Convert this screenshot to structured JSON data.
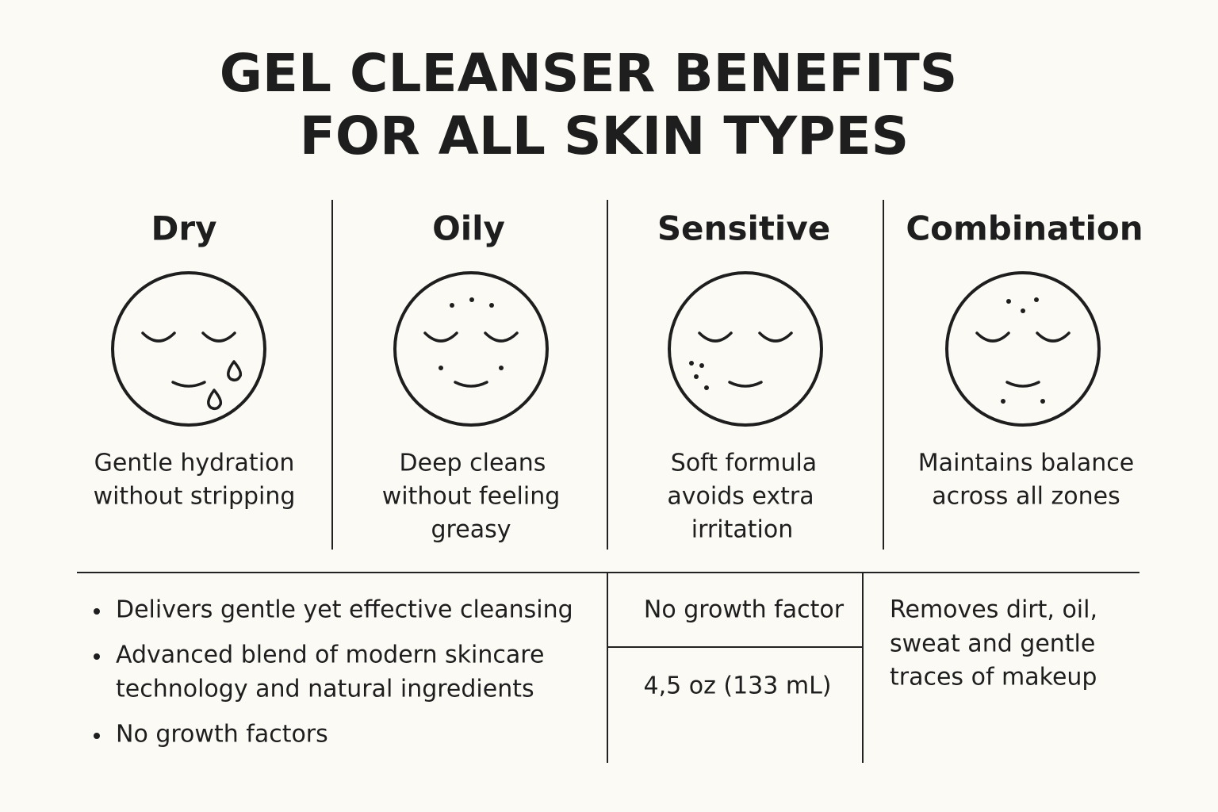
{
  "header": {
    "title_lines": [
      "GEL CLEANSER BENEFITS",
      "FOR ALL SKIN TYPES"
    ]
  },
  "skin_types": [
    {
      "name": "Dry",
      "description_lines": [
        "Gentle hydration",
        "without stripping"
      ]
    },
    {
      "name": "Oily",
      "description_lines": [
        "Deep cleans",
        "without feeling",
        "greasy"
      ]
    },
    {
      "name": "Sensitive",
      "description_lines": [
        "Soft formula",
        "avoids extra",
        "irritation"
      ]
    },
    {
      "name": "Combination",
      "description_lines": [
        "Maintains balance",
        "across all zones"
      ]
    }
  ],
  "features": {
    "bullets": [
      [
        "Delivers gentle yet effective cleansing"
      ],
      [
        "Advanced blend of modern skincare",
        "technology and natural ingredients"
      ],
      [
        "No growth factors"
      ]
    ],
    "middle": [
      "No growth factor",
      "4,5 oz (133 mL)"
    ],
    "right_lines": [
      "Removes dirt, oil,",
      "sweat and gentle",
      "traces of makeup"
    ]
  }
}
